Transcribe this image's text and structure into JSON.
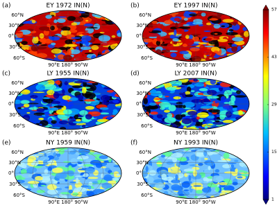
{
  "panels": [
    {
      "label": "(a)",
      "title": "EY 1972 IN(N)",
      "lat_labels": [
        "60°N",
        "30°N",
        "0°",
        "30°S",
        "60°S"
      ],
      "lon_label": "90°E 180° 90°W"
    },
    {
      "label": "(b)",
      "title": "EY 1997 IN(N)",
      "lat_labels": [
        "60°N",
        "30°N",
        "0°",
        "30°S",
        "60°S"
      ],
      "lon_label": "90°E 180° 90°W"
    },
    {
      "label": "(c)",
      "title": "LY 1955 IN(N)",
      "lat_labels": [
        "60°N",
        "30°N",
        "0°",
        "30°S",
        "60°S"
      ],
      "lon_label": "90°E 180° 90°W"
    },
    {
      "label": "(d)",
      "title": "LY 2007 IN(N)",
      "lat_labels": [
        "60°N",
        "30°N",
        "0°",
        "30°S",
        "60°S"
      ],
      "lon_label": "90°E 180° 90°W"
    },
    {
      "label": "(e)",
      "title": "NY 1959 IN(N)",
      "lat_labels": [
        "60°N",
        "30°N",
        "0°",
        "30°S",
        "60°S"
      ],
      "lon_label": "90°E 180° 90°W"
    },
    {
      "label": "(f)",
      "title": "NY 1993 IN(N)",
      "lat_labels": [
        "60°N",
        "30°N",
        "0°",
        "30°S",
        "60°S"
      ],
      "lon_label": "90°E 180° 90°W"
    }
  ],
  "colorbar": {
    "lim": [
      1,
      57
    ],
    "ticks": [
      1,
      15,
      29,
      43,
      57
    ]
  }
}
